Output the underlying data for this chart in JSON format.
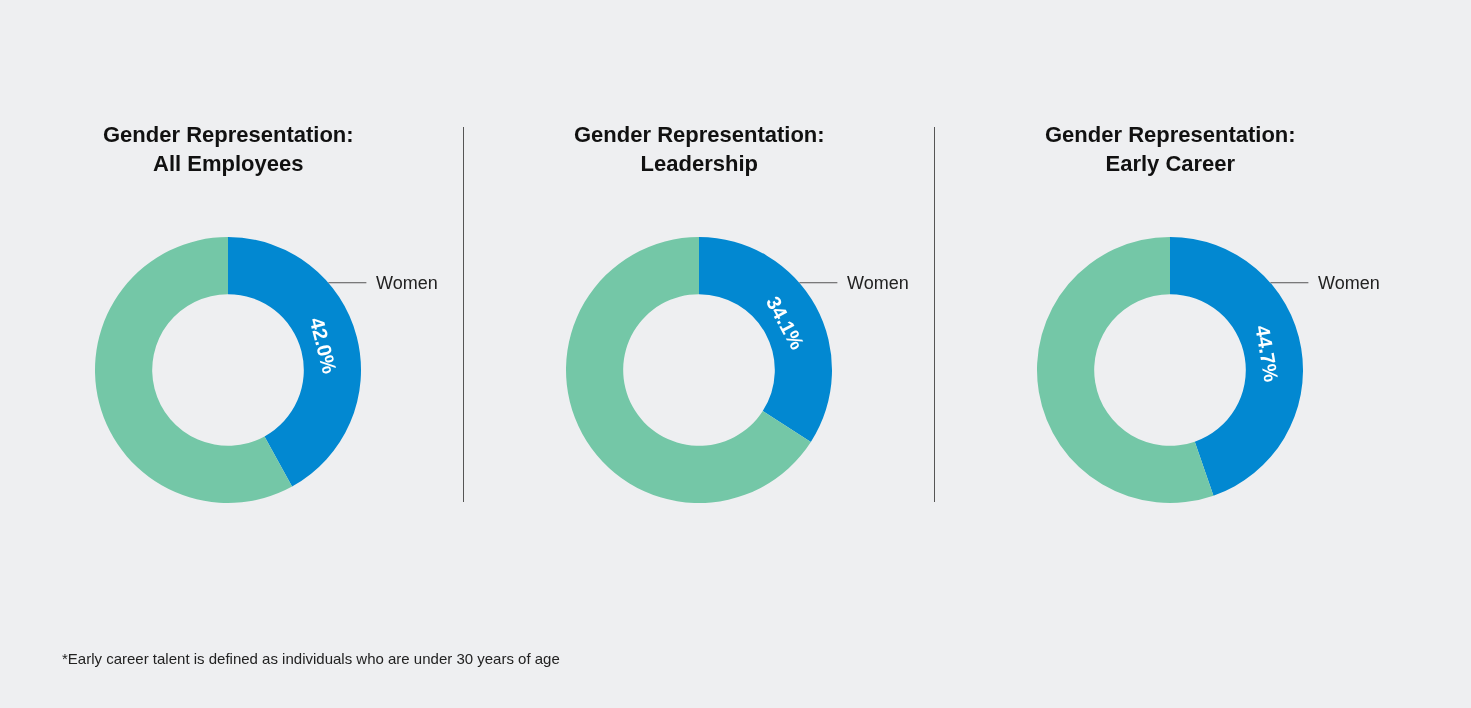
{
  "chart_data": [
    {
      "type": "donut",
      "title": "Gender Representation:\nAll Employees",
      "categories": [
        "Women",
        null
      ],
      "values": [
        42.0,
        58.0
      ],
      "colors": [
        "#0288d1",
        "#74c7a7"
      ],
      "value_labels": [
        "42.0%",
        null
      ],
      "annotations": [
        "*Early career talent is defined as individuals who are under 30 years of age"
      ]
    },
    {
      "type": "donut",
      "title": "Gender Representation:\nLeadership",
      "categories": [
        "Women",
        null
      ],
      "values": [
        34.1,
        65.9
      ],
      "colors": [
        "#0288d1",
        "#74c7a7"
      ],
      "value_labels": [
        "34.1%",
        null
      ]
    },
    {
      "type": "donut",
      "title": "Gender Representation:\nEarly Career",
      "categories": [
        "Women",
        null
      ],
      "values": [
        44.7,
        55.3
      ],
      "colors": [
        "#0288d1",
        "#74c7a7"
      ],
      "value_labels": [
        "44.7%",
        null
      ]
    }
  ]
}
